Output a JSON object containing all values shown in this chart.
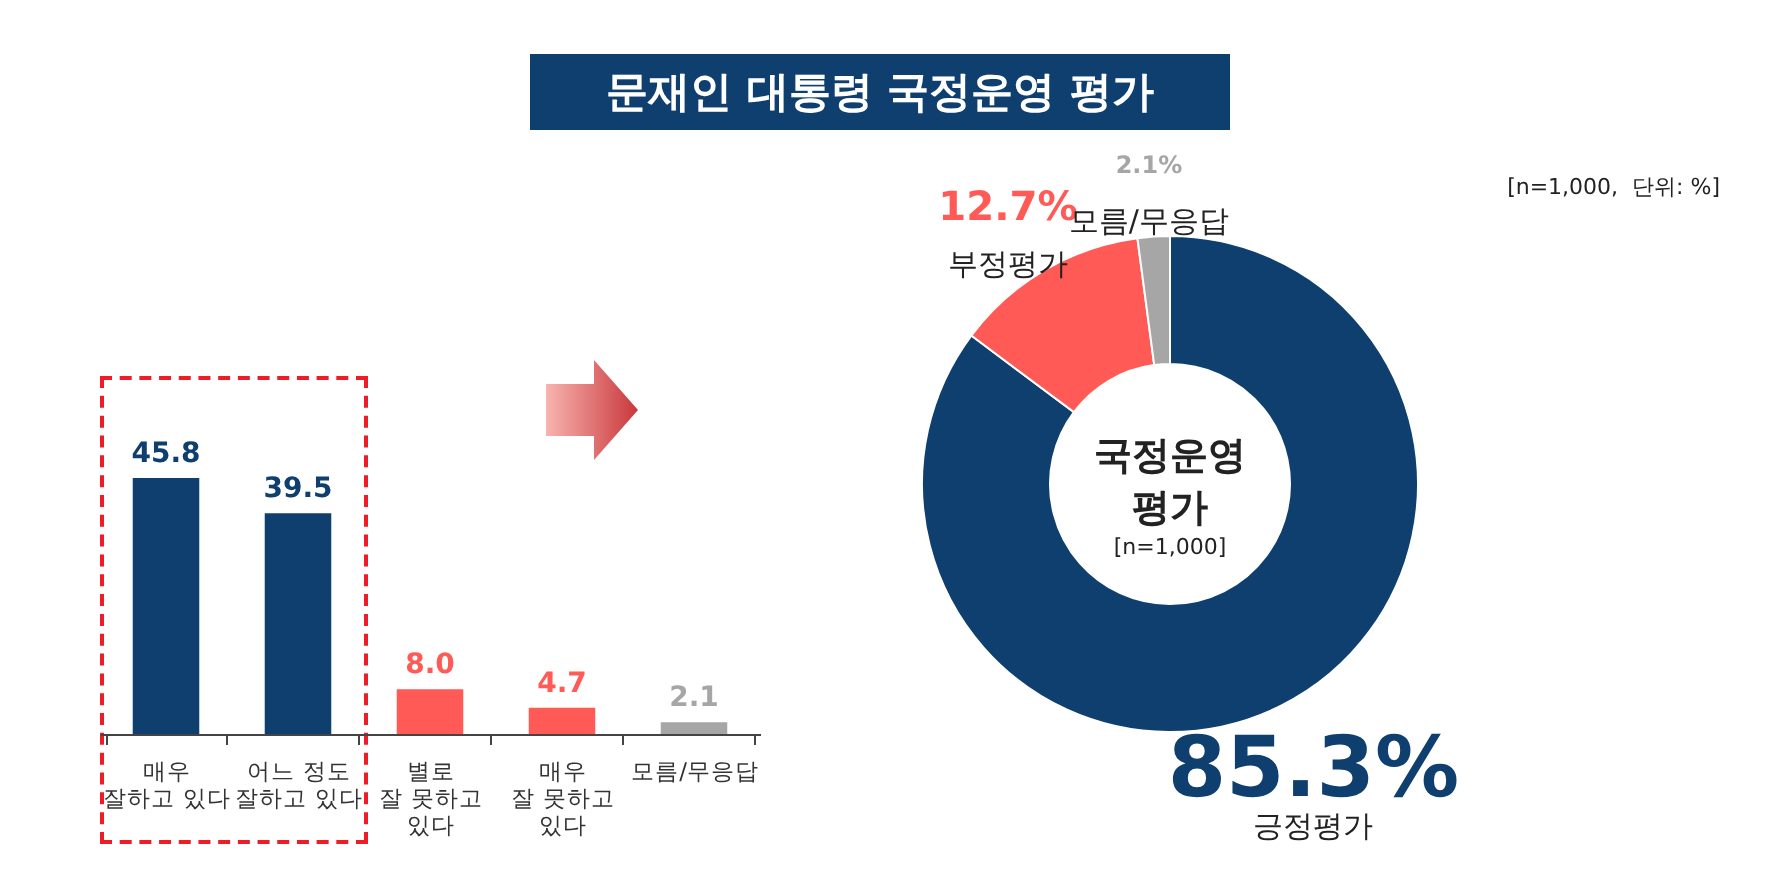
{
  "chart_data": [
    {
      "type": "bar",
      "title": "문재인 대통령 국정운영 평가",
      "categories": [
        "매우\n잘하고 있다",
        "어느 정도\n잘하고 있다",
        "별로\n잘 못하고\n있다",
        "매우\n잘 못하고\n있다",
        "모름/무응답"
      ],
      "values": [
        45.8,
        39.5,
        8.0,
        4.7,
        2.1
      ],
      "colors": [
        "#0e3f6e",
        "#0e3f6e",
        "#ff5a55",
        "#ff5a55",
        "#a6a6a6"
      ],
      "value_labels": [
        "45.8",
        "39.5",
        "8.0",
        "4.7",
        "2.1"
      ]
    },
    {
      "type": "donut",
      "categories": [
        "긍정평가",
        "부정평가",
        "모름/무응답"
      ],
      "values": [
        85.3,
        12.7,
        2.1
      ],
      "colors": [
        "#0e3f6e",
        "#ff5a55",
        "#a6a6a6"
      ],
      "value_labels": [
        "85.3%",
        "12.7%",
        "2.1%"
      ],
      "annotations": [
        "국정운영\n평가",
        "[n=1,000]",
        "[n=1,000,  단위: %]"
      ]
    }
  ]
}
